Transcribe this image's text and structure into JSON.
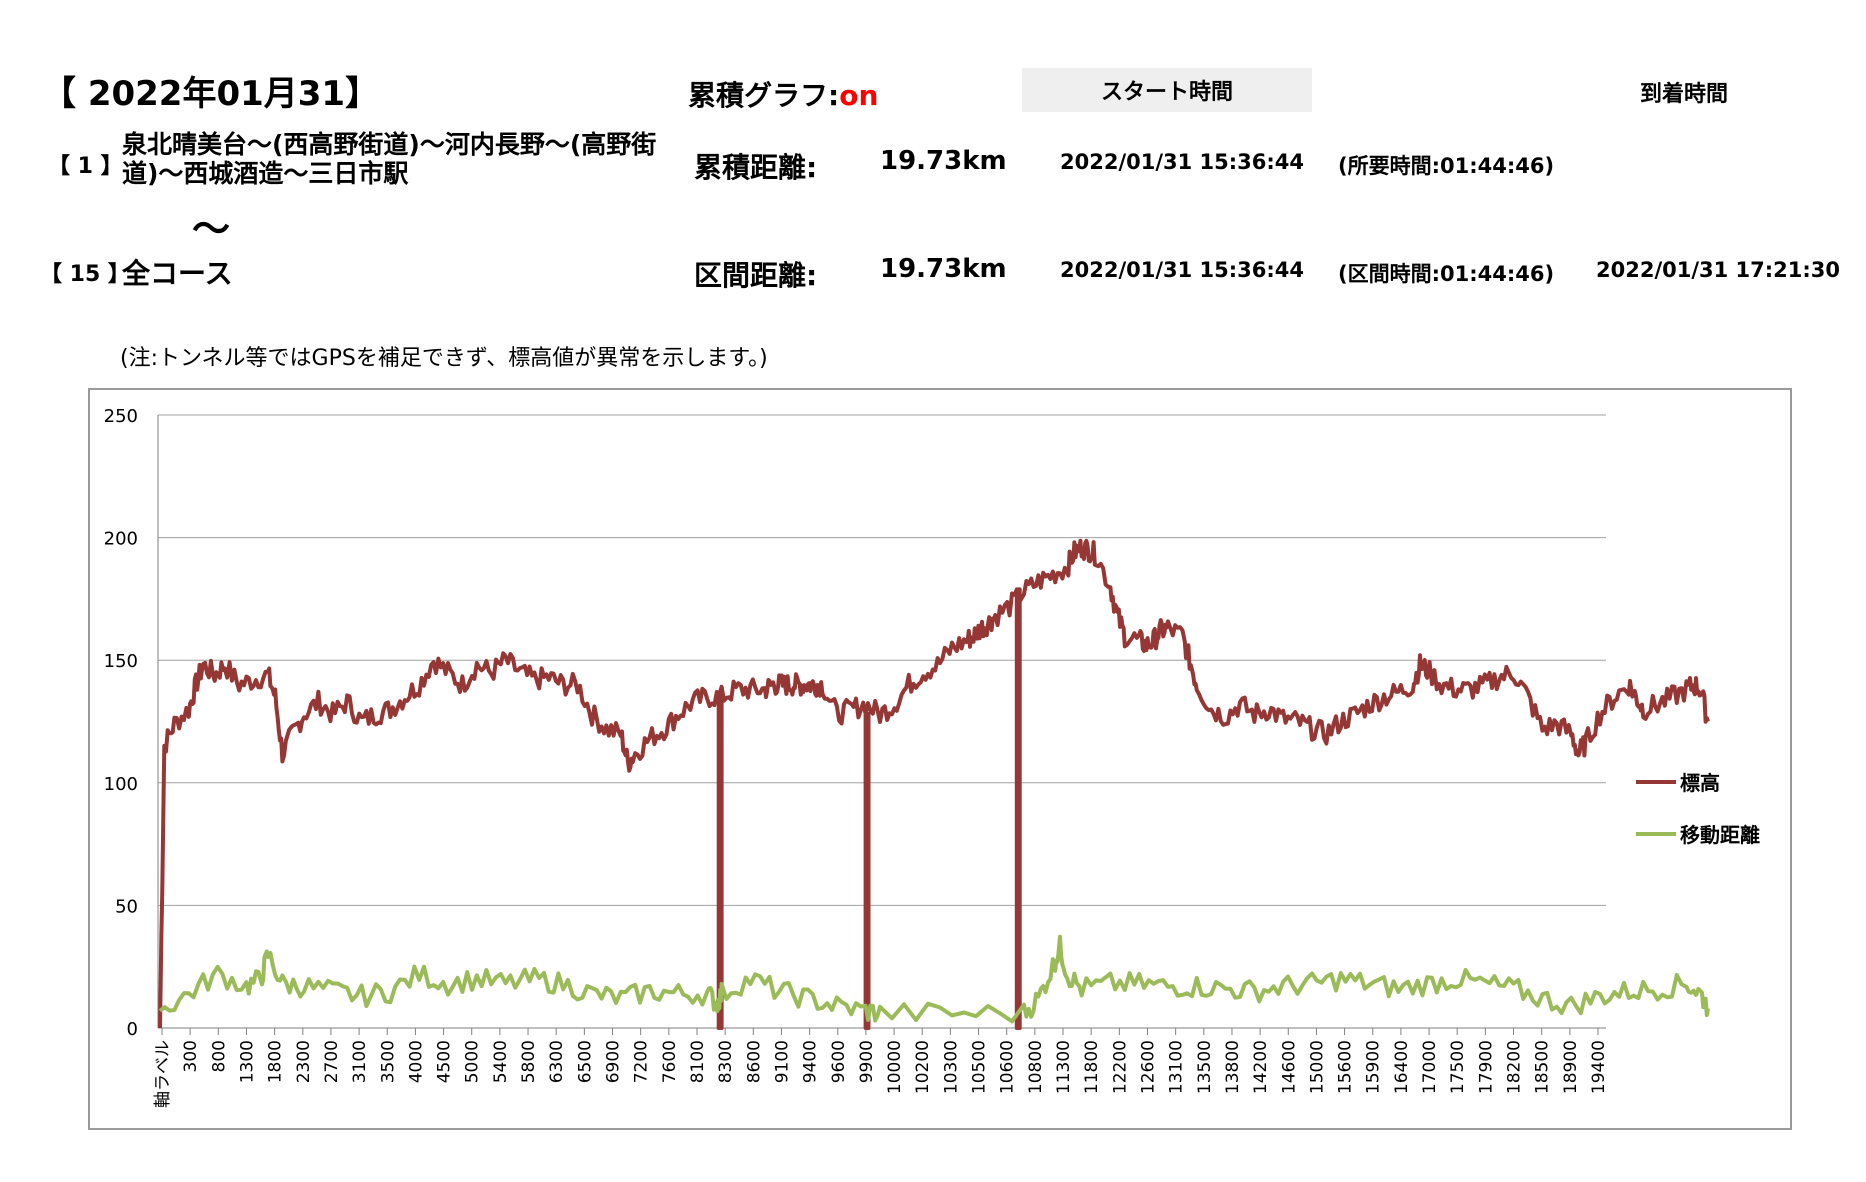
{
  "header": {
    "date_title": "【 2022年01月31】",
    "graph_label": "累積グラフ:",
    "graph_state": "on",
    "start_label": "スタート時間",
    "arrival_label": "到着時間"
  },
  "section1": {
    "no": "【 1 】",
    "route": "泉北晴美台～(西高野街道)～河内長野～(高野街道)～西城酒造～三日市駅",
    "dist_label": "累積距離:",
    "dist_value": "19.73km",
    "start_time": "2022/01/31 15:36:44",
    "duration": "(所要時間:01:44:46)"
  },
  "tilde": "～",
  "section2": {
    "no": "【 15 】",
    "course": "全コース",
    "dist_label": "区間距離:",
    "dist_value": "19.73km",
    "start_time": "2022/01/31 15:36:44",
    "duration": "(区間時間:01:44:46)",
    "arrival_time": "2022/01/31 17:21:30"
  },
  "note": "(注:トンネル等ではGPSを補足できず、標高値が異常を示します。)",
  "colors": {
    "elevation": "#953735",
    "distance": "#9bbb59",
    "grid": "#a0a0a0",
    "accent": "#ff0000"
  },
  "chart_data": {
    "type": "line",
    "ylim": [
      0,
      250
    ],
    "yticks": [
      0,
      50,
      100,
      150,
      200,
      250
    ],
    "x_tick_labels": [
      "軸ラベル",
      "300",
      "800",
      "1300",
      "1800",
      "2300",
      "2700",
      "3100",
      "3500",
      "4000",
      "4500",
      "5000",
      "5400",
      "5800",
      "6300",
      "6500",
      "6900",
      "7200",
      "7600",
      "8100",
      "8300",
      "8600",
      "9100",
      "9400",
      "9600",
      "9900",
      "10000",
      "10200",
      "10300",
      "10500",
      "10600",
      "10800",
      "11300",
      "11800",
      "12200",
      "12600",
      "13100",
      "13500",
      "13800",
      "14200",
      "14600",
      "15000",
      "15600",
      "15900",
      "16400",
      "17000",
      "17500",
      "17900",
      "18200",
      "18500",
      "18900",
      "19400"
    ],
    "legend_position": "right",
    "grid": true,
    "series": [
      {
        "name": "標高",
        "color": "#953735",
        "points": [
          [
            0,
            0
          ],
          [
            0.003,
            115
          ],
          [
            0.01,
            124
          ],
          [
            0.02,
            130
          ],
          [
            0.025,
            140
          ],
          [
            0.03,
            148
          ],
          [
            0.038,
            144
          ],
          [
            0.045,
            148
          ],
          [
            0.055,
            140
          ],
          [
            0.065,
            142
          ],
          [
            0.075,
            144
          ],
          [
            0.08,
            135
          ],
          [
            0.085,
            112
          ],
          [
            0.092,
            120
          ],
          [
            0.1,
            128
          ],
          [
            0.11,
            133
          ],
          [
            0.12,
            128
          ],
          [
            0.13,
            133
          ],
          [
            0.14,
            125
          ],
          [
            0.15,
            128
          ],
          [
            0.16,
            130
          ],
          [
            0.17,
            135
          ],
          [
            0.18,
            140
          ],
          [
            0.19,
            150
          ],
          [
            0.2,
            145
          ],
          [
            0.21,
            140
          ],
          [
            0.22,
            148
          ],
          [
            0.23,
            145
          ],
          [
            0.24,
            150
          ],
          [
            0.25,
            145
          ],
          [
            0.26,
            142
          ],
          [
            0.27,
            143
          ],
          [
            0.28,
            140
          ],
          [
            0.29,
            140
          ],
          [
            0.3,
            128
          ],
          [
            0.31,
            122
          ],
          [
            0.32,
            120
          ],
          [
            0.325,
            108
          ],
          [
            0.33,
            112
          ],
          [
            0.34,
            118
          ],
          [
            0.35,
            122
          ],
          [
            0.36,
            128
          ],
          [
            0.37,
            133
          ],
          [
            0.38,
            135
          ],
          [
            0.39,
            135
          ],
          [
            0.4,
            138
          ],
          [
            0.41,
            138
          ],
          [
            0.42,
            138
          ],
          [
            0.425,
            140
          ],
          [
            0.43,
            140
          ],
          [
            0.435,
            140
          ],
          [
            0.44,
            140
          ],
          [
            0.445,
            140
          ],
          [
            0.45,
            140
          ],
          [
            0.455,
            140
          ],
          [
            0.46,
            140
          ],
          [
            0.47,
            128
          ],
          [
            0.48,
            130
          ],
          [
            0.49,
            132
          ],
          [
            0.5,
            128
          ],
          [
            0.51,
            132
          ],
          [
            0.52,
            140
          ],
          [
            0.53,
            145
          ],
          [
            0.54,
            148
          ],
          [
            0.55,
            155
          ],
          [
            0.56,
            158
          ],
          [
            0.565,
            160
          ],
          [
            0.57,
            163
          ],
          [
            0.575,
            165
          ],
          [
            0.58,
            168
          ],
          [
            0.59,
            172
          ],
          [
            0.6,
            178
          ],
          [
            0.61,
            182
          ],
          [
            0.62,
            185
          ],
          [
            0.63,
            188
          ],
          [
            0.635,
            194
          ],
          [
            0.64,
            196
          ],
          [
            0.645,
            195
          ],
          [
            0.65,
            193
          ],
          [
            0.66,
            180
          ],
          [
            0.665,
            168
          ],
          [
            0.67,
            160
          ],
          [
            0.68,
            158
          ],
          [
            0.685,
            156
          ],
          [
            0.69,
            158
          ],
          [
            0.695,
            162
          ],
          [
            0.7,
            163
          ],
          [
            0.71,
            160
          ],
          [
            0.715,
            150
          ],
          [
            0.72,
            140
          ],
          [
            0.73,
            130
          ],
          [
            0.74,
            127
          ],
          [
            0.75,
            132
          ],
          [
            0.76,
            128
          ],
          [
            0.77,
            130
          ],
          [
            0.78,
            126
          ],
          [
            0.79,
            125
          ],
          [
            0.8,
            122
          ],
          [
            0.81,
            120
          ],
          [
            0.82,
            125
          ],
          [
            0.83,
            128
          ],
          [
            0.84,
            132
          ],
          [
            0.85,
            135
          ],
          [
            0.86,
            137
          ],
          [
            0.87,
            140
          ],
          [
            0.875,
            148
          ],
          [
            0.88,
            146
          ],
          [
            0.89,
            140
          ],
          [
            0.9,
            138
          ],
          [
            0.91,
            138
          ],
          [
            0.92,
            140
          ],
          [
            0.93,
            143
          ],
          [
            0.94,
            145
          ],
          [
            0.95,
            135
          ],
          [
            0.96,
            122
          ],
          [
            0.97,
            124
          ],
          [
            0.98,
            120
          ],
          [
            0.985,
            112
          ],
          [
            0.99,
            116
          ],
          [
            1.0,
            128
          ],
          [
            1.01,
            135
          ],
          [
            1.02,
            140
          ],
          [
            1.025,
            135
          ],
          [
            1.03,
            130
          ],
          [
            1.04,
            132
          ],
          [
            1.05,
            135
          ],
          [
            1.06,
            138
          ],
          [
            1.065,
            140
          ],
          [
            1.07,
            138
          ],
          [
            1.075,
            125
          ]
        ],
        "drops_at_x": [
          0.388,
          0.49,
          0.595
        ]
      },
      {
        "name": "移動距離",
        "color": "#9bbb59",
        "points": [
          [
            0,
            7
          ],
          [
            0.02,
            14
          ],
          [
            0.04,
            22
          ],
          [
            0.06,
            17
          ],
          [
            0.07,
            20
          ],
          [
            0.075,
            30
          ],
          [
            0.085,
            18
          ],
          [
            0.1,
            17
          ],
          [
            0.12,
            15
          ],
          [
            0.14,
            13
          ],
          [
            0.16,
            15
          ],
          [
            0.18,
            22
          ],
          [
            0.2,
            18
          ],
          [
            0.22,
            20
          ],
          [
            0.24,
            18
          ],
          [
            0.26,
            20
          ],
          [
            0.28,
            18
          ],
          [
            0.3,
            14
          ],
          [
            0.32,
            12
          ],
          [
            0.34,
            15
          ],
          [
            0.36,
            14
          ],
          [
            0.38,
            14
          ],
          [
            0.387,
            10
          ],
          [
            0.39,
            14
          ],
          [
            0.41,
            20
          ],
          [
            0.43,
            15
          ],
          [
            0.45,
            12
          ],
          [
            0.47,
            9
          ],
          [
            0.49,
            7
          ],
          [
            0.5,
            6
          ],
          [
            0.55,
            6
          ],
          [
            0.6,
            6
          ],
          [
            0.61,
            12
          ],
          [
            0.62,
            25
          ],
          [
            0.625,
            33
          ],
          [
            0.63,
            22
          ],
          [
            0.64,
            16
          ],
          [
            0.66,
            18
          ],
          [
            0.68,
            18
          ],
          [
            0.7,
            17
          ],
          [
            0.72,
            17
          ],
          [
            0.74,
            16
          ],
          [
            0.76,
            15
          ],
          [
            0.78,
            17
          ],
          [
            0.8,
            18
          ],
          [
            0.82,
            20
          ],
          [
            0.84,
            18
          ],
          [
            0.86,
            16
          ],
          [
            0.88,
            18
          ],
          [
            0.9,
            20
          ],
          [
            0.92,
            18
          ],
          [
            0.94,
            16
          ],
          [
            0.96,
            12
          ],
          [
            0.98,
            9
          ],
          [
            1.0,
            13
          ],
          [
            1.02,
            15
          ],
          [
            1.04,
            16
          ],
          [
            1.06,
            18
          ],
          [
            1.07,
            14
          ],
          [
            1.075,
            8
          ]
        ]
      }
    ]
  }
}
